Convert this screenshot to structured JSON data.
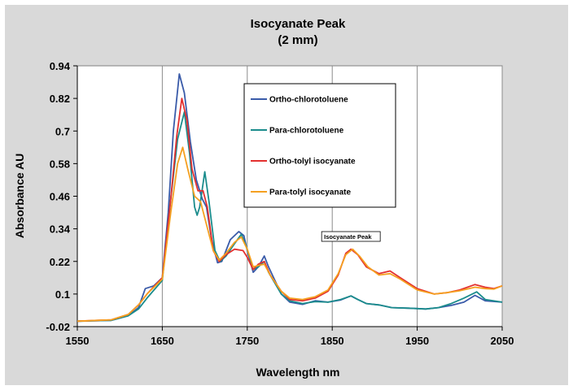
{
  "chart_data": {
    "type": "line",
    "title": "Isocyanate Peak",
    "subtitle": "(2 mm)",
    "xlabel": "Wavelength nm",
    "ylabel": "Absorbance AU",
    "xlim": [
      1550,
      2050
    ],
    "ylim": [
      -0.02,
      0.94
    ],
    "xticks": [
      1550,
      1650,
      1750,
      1850,
      1950,
      2050
    ],
    "xtick_labels": [
      "1550",
      "1650",
      "1750",
      "1850",
      "1950",
      "2050"
    ],
    "yticks": [
      -0.02,
      0.1,
      0.22,
      0.34,
      0.46,
      0.58,
      0.7,
      0.82,
      0.94
    ],
    "ytick_labels": [
      "-0.02",
      "0.1",
      "0.22",
      "0.34",
      "0.46",
      "0.58",
      "0.7",
      "0.82",
      "0.94"
    ],
    "grid": "vertical",
    "legend_position": "top-center",
    "annotation": {
      "text": "Isocyanate Peak",
      "x": 1872,
      "y": 0.27
    },
    "series": [
      {
        "name": "Ortho-chlorotoluene",
        "color": "#3a5ba9",
        "points": [
          [
            1550,
            0.0
          ],
          [
            1590,
            0.003
          ],
          [
            1610,
            0.02
          ],
          [
            1622,
            0.05
          ],
          [
            1630,
            0.12
          ],
          [
            1640,
            0.13
          ],
          [
            1650,
            0.16
          ],
          [
            1657,
            0.4
          ],
          [
            1663,
            0.7
          ],
          [
            1670,
            0.91
          ],
          [
            1676,
            0.84
          ],
          [
            1683,
            0.66
          ],
          [
            1690,
            0.52
          ],
          [
            1697,
            0.45
          ],
          [
            1702,
            0.42
          ],
          [
            1708,
            0.3
          ],
          [
            1715,
            0.215
          ],
          [
            1720,
            0.22
          ],
          [
            1730,
            0.3
          ],
          [
            1740,
            0.33
          ],
          [
            1746,
            0.315
          ],
          [
            1750,
            0.26
          ],
          [
            1757,
            0.18
          ],
          [
            1763,
            0.2
          ],
          [
            1770,
            0.24
          ],
          [
            1775,
            0.2
          ],
          [
            1790,
            0.1
          ],
          [
            1800,
            0.07
          ],
          [
            1815,
            0.062
          ],
          [
            1830,
            0.075
          ],
          [
            1845,
            0.07
          ],
          [
            1860,
            0.078
          ],
          [
            1872,
            0.093
          ],
          [
            1880,
            0.08
          ],
          [
            1890,
            0.065
          ],
          [
            1905,
            0.06
          ],
          [
            1920,
            0.05
          ],
          [
            1940,
            0.048
          ],
          [
            1960,
            0.045
          ],
          [
            1975,
            0.05
          ],
          [
            1990,
            0.058
          ],
          [
            2005,
            0.07
          ],
          [
            2018,
            0.095
          ],
          [
            2030,
            0.075
          ],
          [
            2050,
            0.07
          ]
        ]
      },
      {
        "name": "Para-chlorotoluene",
        "color": "#1b8c8c",
        "points": [
          [
            1550,
            0.0
          ],
          [
            1590,
            0.003
          ],
          [
            1610,
            0.02
          ],
          [
            1622,
            0.045
          ],
          [
            1632,
            0.085
          ],
          [
            1650,
            0.15
          ],
          [
            1660,
            0.45
          ],
          [
            1668,
            0.67
          ],
          [
            1676,
            0.77
          ],
          [
            1682,
            0.62
          ],
          [
            1688,
            0.42
          ],
          [
            1691,
            0.39
          ],
          [
            1694,
            0.42
          ],
          [
            1700,
            0.55
          ],
          [
            1705,
            0.44
          ],
          [
            1712,
            0.26
          ],
          [
            1718,
            0.22
          ],
          [
            1725,
            0.24
          ],
          [
            1735,
            0.285
          ],
          [
            1743,
            0.32
          ],
          [
            1750,
            0.265
          ],
          [
            1757,
            0.19
          ],
          [
            1763,
            0.2
          ],
          [
            1770,
            0.22
          ],
          [
            1775,
            0.18
          ],
          [
            1790,
            0.1
          ],
          [
            1800,
            0.075
          ],
          [
            1815,
            0.065
          ],
          [
            1830,
            0.072
          ],
          [
            1845,
            0.07
          ],
          [
            1860,
            0.08
          ],
          [
            1872,
            0.093
          ],
          [
            1880,
            0.08
          ],
          [
            1890,
            0.065
          ],
          [
            1905,
            0.06
          ],
          [
            1920,
            0.05
          ],
          [
            1940,
            0.048
          ],
          [
            1960,
            0.045
          ],
          [
            1975,
            0.05
          ],
          [
            1990,
            0.065
          ],
          [
            2005,
            0.085
          ],
          [
            2020,
            0.108
          ],
          [
            2030,
            0.08
          ],
          [
            2050,
            0.07
          ]
        ]
      },
      {
        "name": "Ortho-tolyl isocyanate",
        "color": "#e3302f",
        "points": [
          [
            1550,
            0.0
          ],
          [
            1590,
            0.005
          ],
          [
            1610,
            0.025
          ],
          [
            1622,
            0.06
          ],
          [
            1632,
            0.1
          ],
          [
            1650,
            0.16
          ],
          [
            1660,
            0.45
          ],
          [
            1667,
            0.68
          ],
          [
            1673,
            0.82
          ],
          [
            1679,
            0.74
          ],
          [
            1685,
            0.56
          ],
          [
            1692,
            0.48
          ],
          [
            1698,
            0.48
          ],
          [
            1703,
            0.42
          ],
          [
            1710,
            0.26
          ],
          [
            1717,
            0.22
          ],
          [
            1725,
            0.245
          ],
          [
            1735,
            0.265
          ],
          [
            1745,
            0.26
          ],
          [
            1750,
            0.235
          ],
          [
            1757,
            0.19
          ],
          [
            1763,
            0.21
          ],
          [
            1770,
            0.22
          ],
          [
            1777,
            0.17
          ],
          [
            1790,
            0.11
          ],
          [
            1800,
            0.08
          ],
          [
            1815,
            0.075
          ],
          [
            1830,
            0.085
          ],
          [
            1845,
            0.11
          ],
          [
            1857,
            0.17
          ],
          [
            1866,
            0.25
          ],
          [
            1872,
            0.265
          ],
          [
            1880,
            0.245
          ],
          [
            1890,
            0.2
          ],
          [
            1905,
            0.175
          ],
          [
            1918,
            0.185
          ],
          [
            1930,
            0.16
          ],
          [
            1950,
            0.12
          ],
          [
            1970,
            0.1
          ],
          [
            1985,
            0.105
          ],
          [
            2000,
            0.115
          ],
          [
            2018,
            0.135
          ],
          [
            2030,
            0.125
          ],
          [
            2040,
            0.12
          ],
          [
            2050,
            0.13
          ]
        ]
      },
      {
        "name": "Para-tolyl isocyanate",
        "color": "#f5a020",
        "points": [
          [
            1550,
            0.0
          ],
          [
            1590,
            0.005
          ],
          [
            1610,
            0.025
          ],
          [
            1622,
            0.06
          ],
          [
            1632,
            0.1
          ],
          [
            1650,
            0.155
          ],
          [
            1660,
            0.4
          ],
          [
            1668,
            0.58
          ],
          [
            1674,
            0.64
          ],
          [
            1680,
            0.56
          ],
          [
            1688,
            0.46
          ],
          [
            1695,
            0.44
          ],
          [
            1700,
            0.38
          ],
          [
            1710,
            0.26
          ],
          [
            1717,
            0.225
          ],
          [
            1725,
            0.25
          ],
          [
            1735,
            0.29
          ],
          [
            1743,
            0.31
          ],
          [
            1750,
            0.265
          ],
          [
            1757,
            0.2
          ],
          [
            1763,
            0.205
          ],
          [
            1770,
            0.21
          ],
          [
            1777,
            0.17
          ],
          [
            1790,
            0.11
          ],
          [
            1800,
            0.085
          ],
          [
            1815,
            0.08
          ],
          [
            1830,
            0.09
          ],
          [
            1845,
            0.115
          ],
          [
            1857,
            0.175
          ],
          [
            1866,
            0.245
          ],
          [
            1874,
            0.265
          ],
          [
            1882,
            0.24
          ],
          [
            1892,
            0.2
          ],
          [
            1905,
            0.17
          ],
          [
            1918,
            0.175
          ],
          [
            1930,
            0.155
          ],
          [
            1950,
            0.115
          ],
          [
            1970,
            0.1
          ],
          [
            1985,
            0.105
          ],
          [
            2000,
            0.112
          ],
          [
            2018,
            0.125
          ],
          [
            2030,
            0.12
          ],
          [
            2040,
            0.118
          ],
          [
            2050,
            0.13
          ]
        ]
      }
    ]
  }
}
